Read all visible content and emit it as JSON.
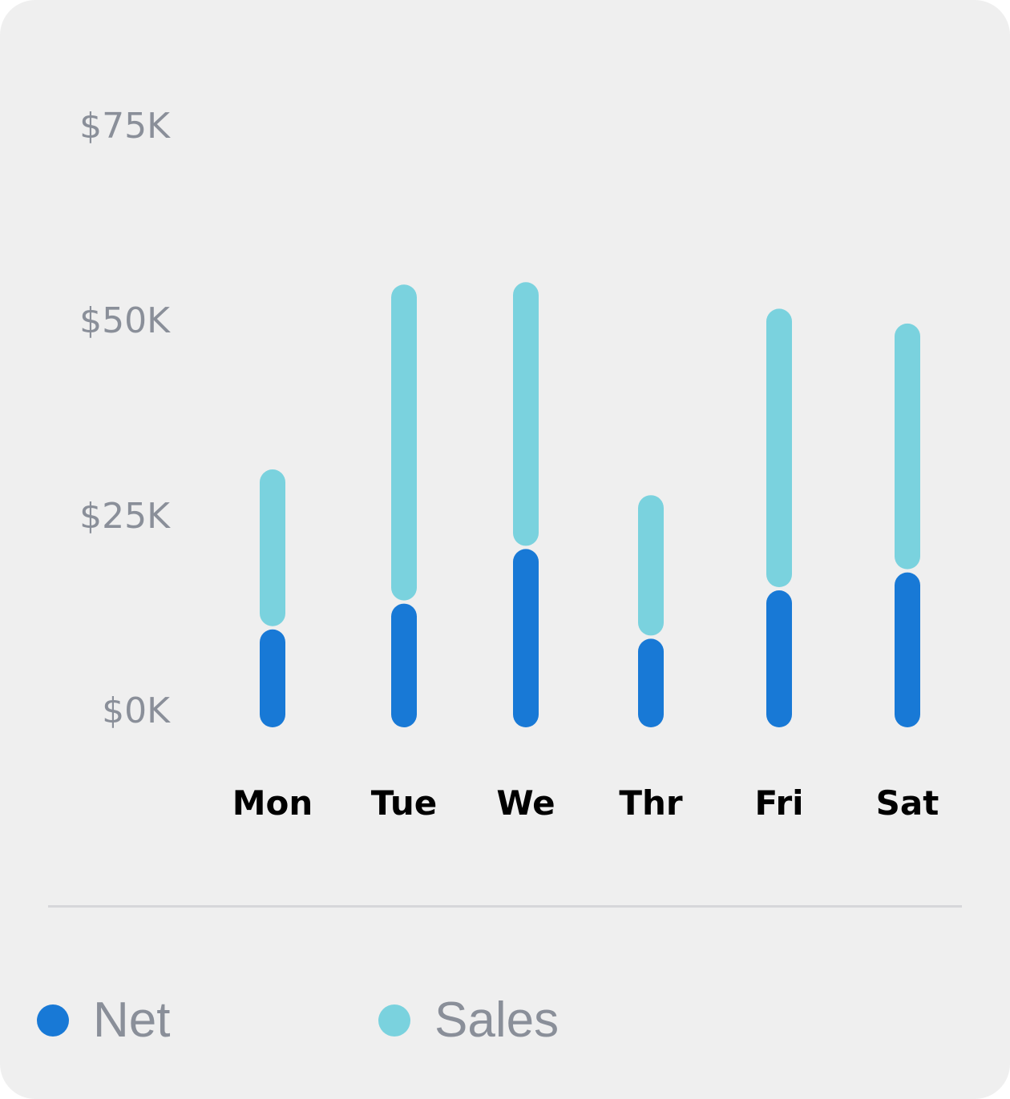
{
  "chart_data": {
    "type": "bar",
    "stacked": true,
    "categories": [
      "Mon",
      "Tue",
      "We",
      "Thr",
      "Fri",
      "Sat"
    ],
    "series": [
      {
        "name": "Net",
        "color": "#1879d6",
        "values": [
          10.5,
          13.8,
          20.8,
          9.3,
          15.5,
          17.8
        ]
      },
      {
        "name": "Sales",
        "color": "#7ad2de",
        "values": [
          20.5,
          40.9,
          34.2,
          18.4,
          36.1,
          31.9
        ]
      }
    ],
    "y_ticks": [
      "$0K",
      "$25K",
      "$50K",
      "$75K"
    ],
    "y_tick_values": [
      0,
      25,
      50,
      75
    ],
    "ylim": [
      0,
      75
    ],
    "grid": false,
    "legend_position": "bottom"
  },
  "legend": {
    "net_label": "Net",
    "sales_label": "Sales"
  }
}
